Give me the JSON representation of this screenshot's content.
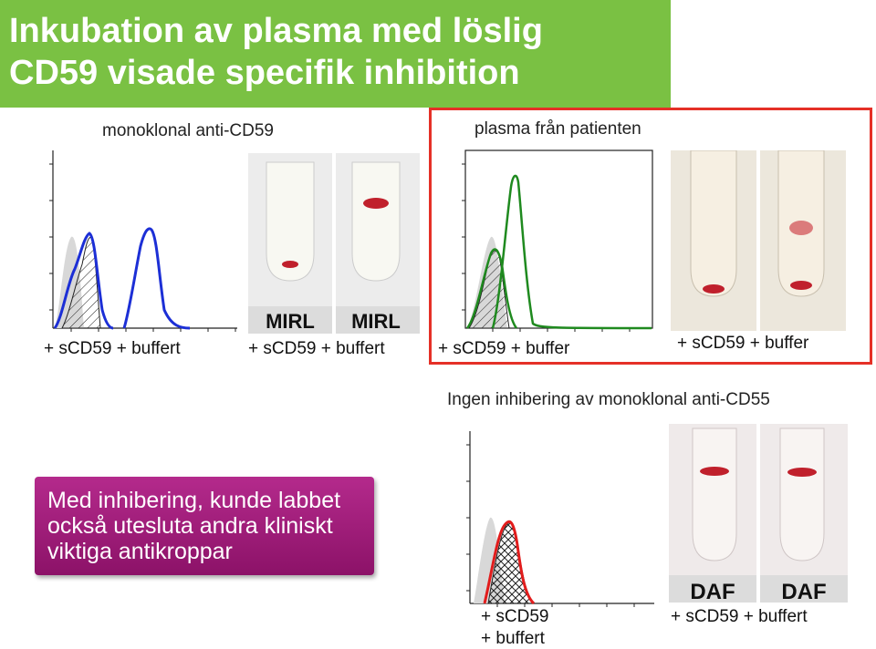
{
  "title": {
    "line1": "Inkubation av plasma med löslig",
    "line2": "CD59 visade specifik inhibition"
  },
  "sections": {
    "monoclonal": "monoklonal anti-CD59",
    "patient": "plasma från patienten",
    "no_inhibition": "Ingen inhibering av monoklonal anti-CD55"
  },
  "labels": {
    "hist1": "+ sCD59  + buffert",
    "tubes1": "+ sCD59  + buffert",
    "hist2": "+ sCD59  + buffer",
    "tubes2": "+ sCD59  + buffer",
    "hist3_line1": "+ sCD59",
    "hist3_line2": "+ buffert",
    "tubes3": "+ sCD59  + buffert"
  },
  "tube_labels": {
    "mirl_left": "MIRL",
    "mirl_right": "MIRL",
    "daf_left": "DAF",
    "daf_right": "DAF"
  },
  "note": {
    "line1": "Med inhibering, kunde labbet",
    "line2": "också utesluta andra kliniskt",
    "line3": "viktiga antikroppar"
  },
  "colors": {
    "title_bg": "#7ac143",
    "frame": "#e53027",
    "note_bg": "#a01f7c",
    "hist_blue": "#1c2fd6",
    "hist_green": "#1f8a1f",
    "hist_red": "#e21c1c"
  }
}
